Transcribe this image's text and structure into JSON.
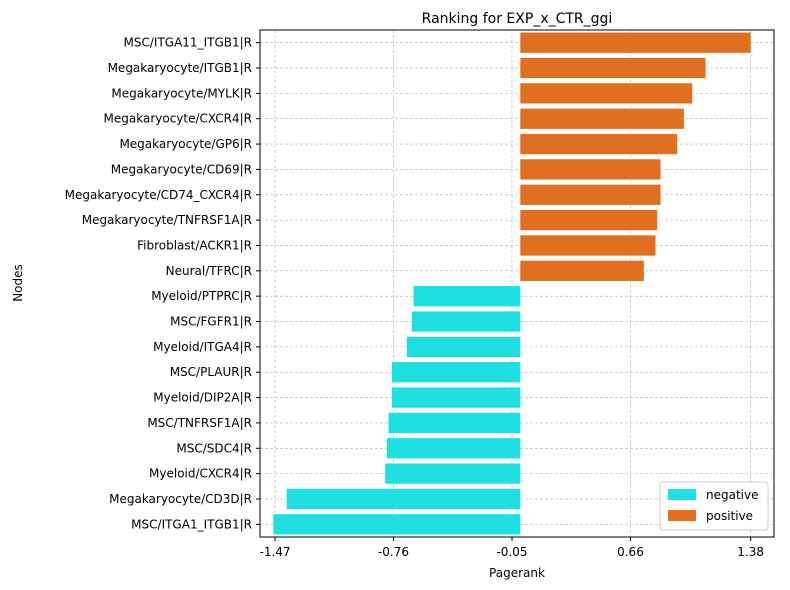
{
  "chart_data": {
    "type": "bar",
    "orientation": "horizontal",
    "title": "Ranking for EXP_x_CTR_ggi",
    "xlabel": "Pagerank",
    "ylabel": "Nodes",
    "xlim": [
      -1.56,
      1.52
    ],
    "xticks": [
      "-1.47",
      "-0.76",
      "-0.05",
      "0.66",
      "1.38"
    ],
    "grid": true,
    "legend_position": "lower-right",
    "legend": [
      {
        "name": "negative",
        "color": "#1fe0e0"
      },
      {
        "name": "positive",
        "color": "#e07020"
      }
    ],
    "categories": [
      "MSC/ITGA11_ITGB1|R",
      "Megakaryocyte/ITGB1|R",
      "Megakaryocyte/MYLK|R",
      "Megakaryocyte/CXCR4|R",
      "Megakaryocyte/GP6|R",
      "Megakaryocyte/CD69|R",
      "Megakaryocyte/CD74_CXCR4|R",
      "Megakaryocyte/TNFRSF1A|R",
      "Fibroblast/ACKR1|R",
      "Neural/TFRC|R",
      "Myeloid/PTPRC|R",
      "MSC/FGFR1|R",
      "Myeloid/ITGA4|R",
      "MSC/PLAUR|R",
      "Myeloid/DIP2A|R",
      "MSC/TNFRSF1A|R",
      "MSC/SDC4|R",
      "Myeloid/CXCR4|R",
      "Megakaryocyte/CD3D|R",
      "MSC/ITGA1_ITGB1|R"
    ],
    "values": [
      1.38,
      1.11,
      1.03,
      0.98,
      0.94,
      0.84,
      0.84,
      0.82,
      0.81,
      0.74,
      -0.64,
      -0.65,
      -0.68,
      -0.77,
      -0.77,
      -0.79,
      -0.8,
      -0.81,
      -1.4,
      -1.48
    ],
    "groups": [
      "positive",
      "positive",
      "positive",
      "positive",
      "positive",
      "positive",
      "positive",
      "positive",
      "positive",
      "positive",
      "negative",
      "negative",
      "negative",
      "negative",
      "negative",
      "negative",
      "negative",
      "negative",
      "negative",
      "negative"
    ]
  }
}
